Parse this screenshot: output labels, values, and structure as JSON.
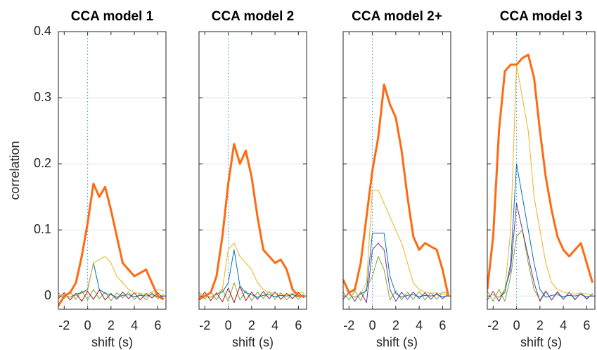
{
  "chart_data": [
    {
      "type": "line",
      "title": "CCA model 1",
      "xlabel": "shift (s)",
      "ylabel": "correlation",
      "x": [
        -2.5,
        -2,
        -1.5,
        -1,
        -0.5,
        0,
        0.5,
        1,
        1.5,
        2,
        2.5,
        3,
        3.5,
        4,
        4.5,
        5,
        5.5,
        6,
        6.5
      ],
      "xlim": [
        -2.5,
        6.7
      ],
      "xticks": [
        -2,
        0,
        2,
        4,
        6
      ],
      "ylim": [
        -0.02,
        0.4
      ],
      "yticks": [
        0,
        0.1,
        0.2,
        0.3,
        0.4
      ],
      "grid": true,
      "series": [
        {
          "color": "#77ac30",
          "values": [
            0.005,
            -0.004,
            0.006,
            -0.005,
            0.008,
            -0.006,
            0.01,
            -0.004,
            0.006,
            -0.007,
            0.005,
            -0.003,
            0.006,
            -0.005,
            0.004,
            -0.006,
            0.005,
            -0.004,
            0.003
          ]
        },
        {
          "color": "#a2142f",
          "values": [
            -0.004,
            0.005,
            -0.006,
            0.004,
            -0.008,
            0.007,
            -0.005,
            0.009,
            -0.006,
            0.004,
            -0.005,
            0.006,
            -0.004,
            0.005,
            -0.006,
            0.004,
            -0.003,
            0.005,
            -0.004
          ]
        },
        {
          "color": "#0072bd",
          "values": [
            0,
            0.002,
            -0.002,
            0.003,
            0.005,
            0.01,
            0.05,
            0.01,
            0.004,
            0.002,
            -0.002,
            0.001,
            0.002,
            -0.001,
            0.001,
            0,
            0.002,
            -0.001,
            0
          ]
        },
        {
          "color": "#edb120",
          "values": [
            0,
            0.002,
            -0.002,
            0.001,
            0.004,
            0.008,
            0.05,
            0.055,
            0.06,
            0.05,
            0.03,
            0.02,
            0.01,
            0.005,
            0.004,
            0.002,
            0.006,
            0.01,
            0.008
          ]
        },
        {
          "color": "#ff6a10",
          "width": 3,
          "values": [
            -0.015,
            0,
            0.005,
            0.02,
            0.06,
            0.11,
            0.17,
            0.15,
            0.165,
            0.13,
            0.09,
            0.05,
            0.04,
            0.03,
            0.035,
            0.04,
            0.02,
            0,
            -0.005
          ]
        }
      ]
    },
    {
      "type": "line",
      "title": "CCA model 2",
      "xlabel": "shift (s)",
      "x": [
        -2.5,
        -2,
        -1.5,
        -1,
        -0.5,
        0,
        0.5,
        1,
        1.5,
        2,
        2.5,
        3,
        3.5,
        4,
        4.5,
        5,
        5.5,
        6,
        6.5
      ],
      "xlim": [
        -2.5,
        6.7
      ],
      "xticks": [
        -2,
        0,
        2,
        4,
        6
      ],
      "series": [
        {
          "color": "#77ac30",
          "values": [
            0.006,
            -0.005,
            0.007,
            -0.006,
            0.01,
            -0.008,
            0.02,
            -0.006,
            0.008,
            -0.007,
            0.006,
            -0.004,
            0.007,
            -0.005,
            0.005,
            -0.006,
            0.004,
            -0.005,
            0.003
          ]
        },
        {
          "color": "#a2142f",
          "values": [
            -0.005,
            0.006,
            -0.007,
            0.005,
            -0.009,
            0.012,
            -0.01,
            0.015,
            -0.007,
            0.006,
            -0.005,
            0.007,
            -0.004,
            0.006,
            -0.005,
            0.004,
            -0.004,
            0.005,
            -0.003
          ]
        },
        {
          "color": "#0072bd",
          "values": [
            0,
            0.002,
            -0.002,
            0.003,
            0.006,
            0.02,
            0.07,
            0.015,
            0.005,
            0.002,
            -0.002,
            0.001,
            0.002,
            -0.001,
            0.001,
            0,
            0.002,
            -0.001,
            0
          ]
        },
        {
          "color": "#edb120",
          "values": [
            0,
            0.002,
            -0.002,
            0.002,
            0.01,
            0.07,
            0.08,
            0.06,
            0.05,
            0.04,
            0.02,
            0.01,
            0.005,
            0.004,
            0.003,
            0.002,
            0.004,
            0.006,
            0.004
          ]
        },
        {
          "color": "#ff6a10",
          "width": 3,
          "values": [
            -0.005,
            0,
            0.005,
            0.03,
            0.09,
            0.17,
            0.23,
            0.2,
            0.22,
            0.18,
            0.12,
            0.07,
            0.06,
            0.05,
            0.055,
            0.04,
            0.01,
            0,
            0
          ]
        }
      ]
    },
    {
      "type": "line",
      "title": "CCA model 2+",
      "xlabel": "shift (s)",
      "x": [
        -2.5,
        -2,
        -1.5,
        -1,
        -0.5,
        0,
        0.5,
        1,
        1.5,
        2,
        2.5,
        3,
        3.5,
        4,
        4.5,
        5,
        5.5,
        6,
        6.5
      ],
      "xlim": [
        -2.5,
        6.7
      ],
      "xticks": [
        -2,
        0,
        2,
        4,
        6
      ],
      "series": [
        {
          "color": "#77ac30",
          "values": [
            0.006,
            -0.006,
            0.008,
            -0.007,
            0.012,
            0.03,
            0.06,
            0.04,
            -0.006,
            0.008,
            -0.006,
            0.006,
            -0.005,
            0.007,
            -0.006,
            0.005,
            -0.005,
            0.006,
            0.004
          ]
        },
        {
          "color": "#7e2f8e",
          "values": [
            -0.005,
            0.006,
            -0.008,
            0.006,
            -0.01,
            0.07,
            0.08,
            0.07,
            0.01,
            -0.008,
            0.006,
            -0.005,
            0.006,
            -0.004,
            0.005,
            -0.005,
            0.004,
            -0.004,
            0.003
          ]
        },
        {
          "color": "#0072bd",
          "values": [
            0,
            0.002,
            -0.002,
            0.003,
            0.008,
            0.095,
            0.095,
            0.095,
            0.03,
            0.004,
            -0.002,
            0.001,
            0.002,
            -0.001,
            0.001,
            0,
            0.002,
            -0.001,
            0
          ]
        },
        {
          "color": "#edb120",
          "values": [
            0,
            0.002,
            -0.002,
            0.004,
            0.02,
            0.16,
            0.16,
            0.14,
            0.12,
            0.1,
            0.08,
            0.05,
            0.02,
            0.01,
            0.006,
            0.004,
            0.005,
            0.003,
            0.002
          ]
        },
        {
          "color": "#ff6a10",
          "width": 3,
          "values": [
            0.025,
            0.005,
            0.01,
            0.05,
            0.12,
            0.19,
            0.24,
            0.32,
            0.29,
            0.27,
            0.22,
            0.15,
            0.09,
            0.07,
            0.08,
            0.075,
            0.07,
            0.04,
            0
          ]
        }
      ]
    },
    {
      "type": "line",
      "title": "CCA model 3",
      "xlabel": "shift (s)",
      "x": [
        -2.5,
        -2,
        -1.5,
        -1,
        -0.5,
        0,
        0.5,
        1,
        1.5,
        2,
        2.5,
        3,
        3.5,
        4,
        4.5,
        5,
        5.5,
        6,
        6.5
      ],
      "xlim": [
        -2.5,
        6.7
      ],
      "xticks": [
        -2,
        0,
        2,
        4,
        6
      ],
      "series": [
        {
          "color": "#77ac30",
          "values": [
            0.008,
            -0.008,
            0.01,
            -0.008,
            0.03,
            0.09,
            0.1,
            0.05,
            0.01,
            -0.006,
            0.008,
            -0.006,
            0.007,
            -0.005,
            0.006,
            -0.006,
            0.005,
            -0.005,
            0.004
          ]
        },
        {
          "color": "#7e2f8e",
          "values": [
            -0.006,
            0.007,
            -0.008,
            0.01,
            0.04,
            0.14,
            0.1,
            0.06,
            0.02,
            -0.008,
            0.007,
            -0.006,
            0.006,
            -0.005,
            0.005,
            -0.005,
            0.004,
            -0.004,
            0.003
          ]
        },
        {
          "color": "#0072bd",
          "values": [
            0,
            0.002,
            -0.002,
            0.005,
            0.05,
            0.2,
            0.15,
            0.1,
            0.05,
            0.01,
            -0.002,
            0.001,
            0.002,
            -0.001,
            0.001,
            0,
            0.002,
            -0.001,
            0
          ]
        },
        {
          "color": "#edb120",
          "values": [
            0,
            0.002,
            -0.002,
            0.01,
            0.1,
            0.35,
            0.3,
            0.25,
            0.15,
            0.1,
            0.05,
            0.02,
            0.01,
            0.006,
            0.004,
            0.003,
            0.004,
            0.003,
            0.002
          ]
        },
        {
          "color": "#ff6a10",
          "width": 3,
          "values": [
            0.01,
            0.09,
            0.25,
            0.34,
            0.35,
            0.35,
            0.36,
            0.365,
            0.33,
            0.25,
            0.18,
            0.13,
            0.09,
            0.07,
            0.06,
            0.07,
            0.08,
            0.05,
            0.02
          ]
        }
      ]
    }
  ]
}
